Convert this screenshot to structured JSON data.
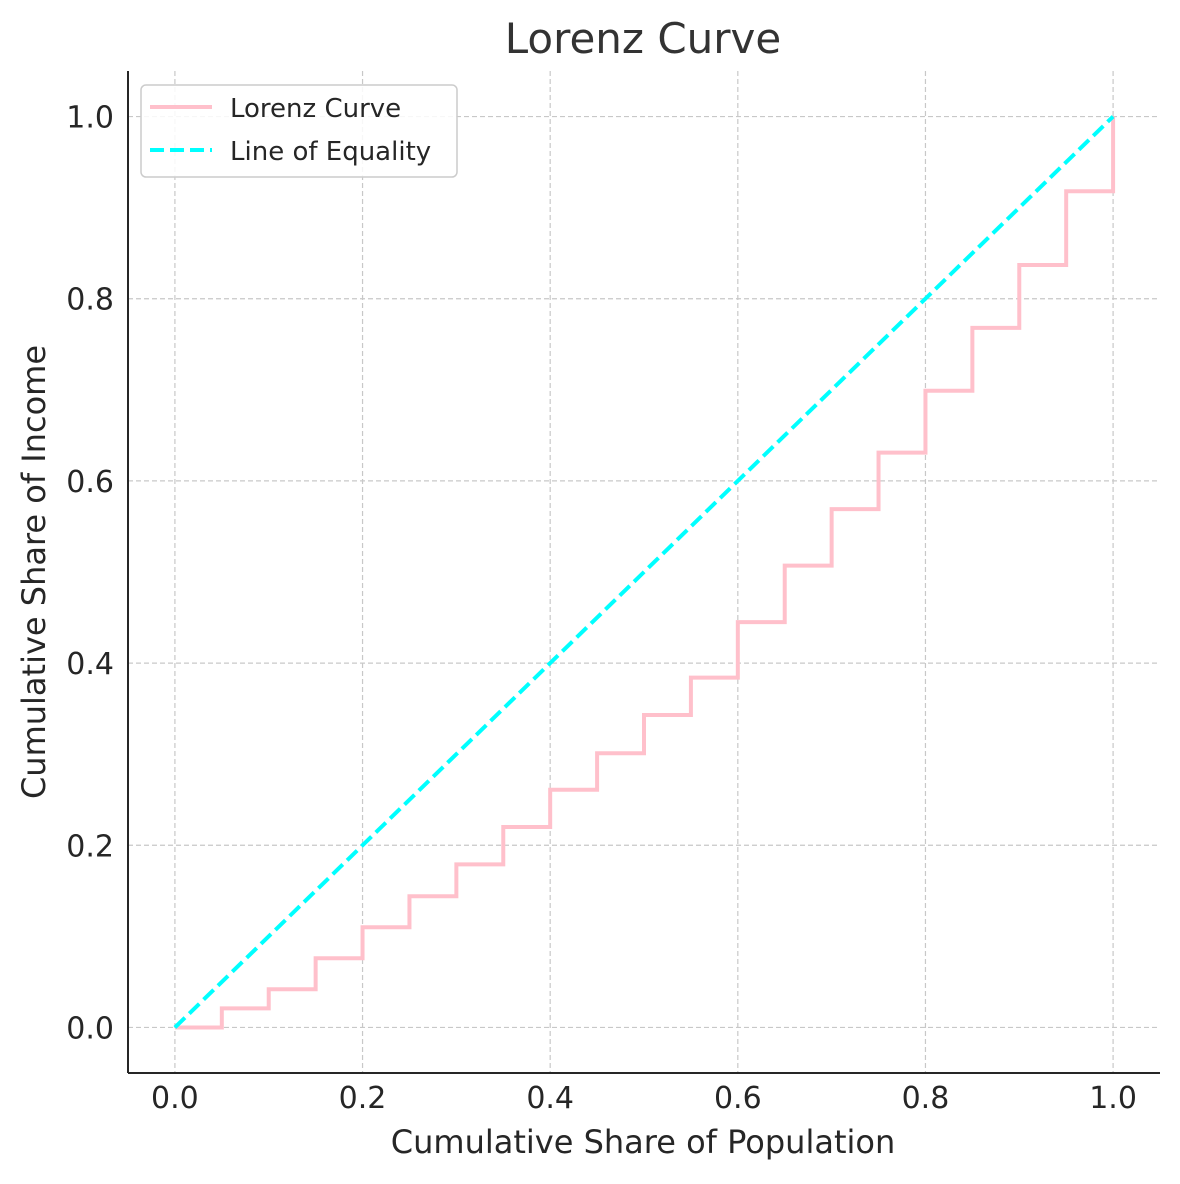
{
  "chart_data": {
    "type": "line",
    "title": "Lorenz Curve",
    "xlabel": "Cumulative Share of Population",
    "ylabel": "Cumulative Share of Income",
    "xlim": [
      -0.05,
      1.05
    ],
    "ylim": [
      -0.05,
      1.05
    ],
    "x_ticks": [
      0.0,
      0.2,
      0.4,
      0.6,
      0.8,
      1.0
    ],
    "y_ticks": [
      0.0,
      0.2,
      0.4,
      0.6,
      0.8,
      1.0
    ],
    "x_tick_labels": [
      "0.0",
      "0.2",
      "0.4",
      "0.6",
      "0.8",
      "1.0"
    ],
    "y_tick_labels": [
      "0.0",
      "0.2",
      "0.4",
      "0.6",
      "0.8",
      "1.0"
    ],
    "grid": true,
    "legend_position": "top-left",
    "series": [
      {
        "name": "Lorenz Curve",
        "style": "step-post",
        "color": "#ffc0cb",
        "x": [
          0.0,
          0.05,
          0.1,
          0.15,
          0.2,
          0.25,
          0.3,
          0.35,
          0.4,
          0.45,
          0.5,
          0.55,
          0.6,
          0.65,
          0.7,
          0.75,
          0.8,
          0.85,
          0.9,
          0.95,
          1.0
        ],
        "y": [
          0.0,
          0.021,
          0.042,
          0.076,
          0.11,
          0.144,
          0.179,
          0.22,
          0.261,
          0.301,
          0.343,
          0.384,
          0.445,
          0.507,
          0.569,
          0.631,
          0.699,
          0.768,
          0.837,
          0.918,
          1.0
        ]
      },
      {
        "name": "Line of Equality",
        "style": "dashed",
        "color": "#00ffff",
        "x": [
          0.0,
          1.0
        ],
        "y": [
          0.0,
          1.0
        ]
      }
    ]
  }
}
